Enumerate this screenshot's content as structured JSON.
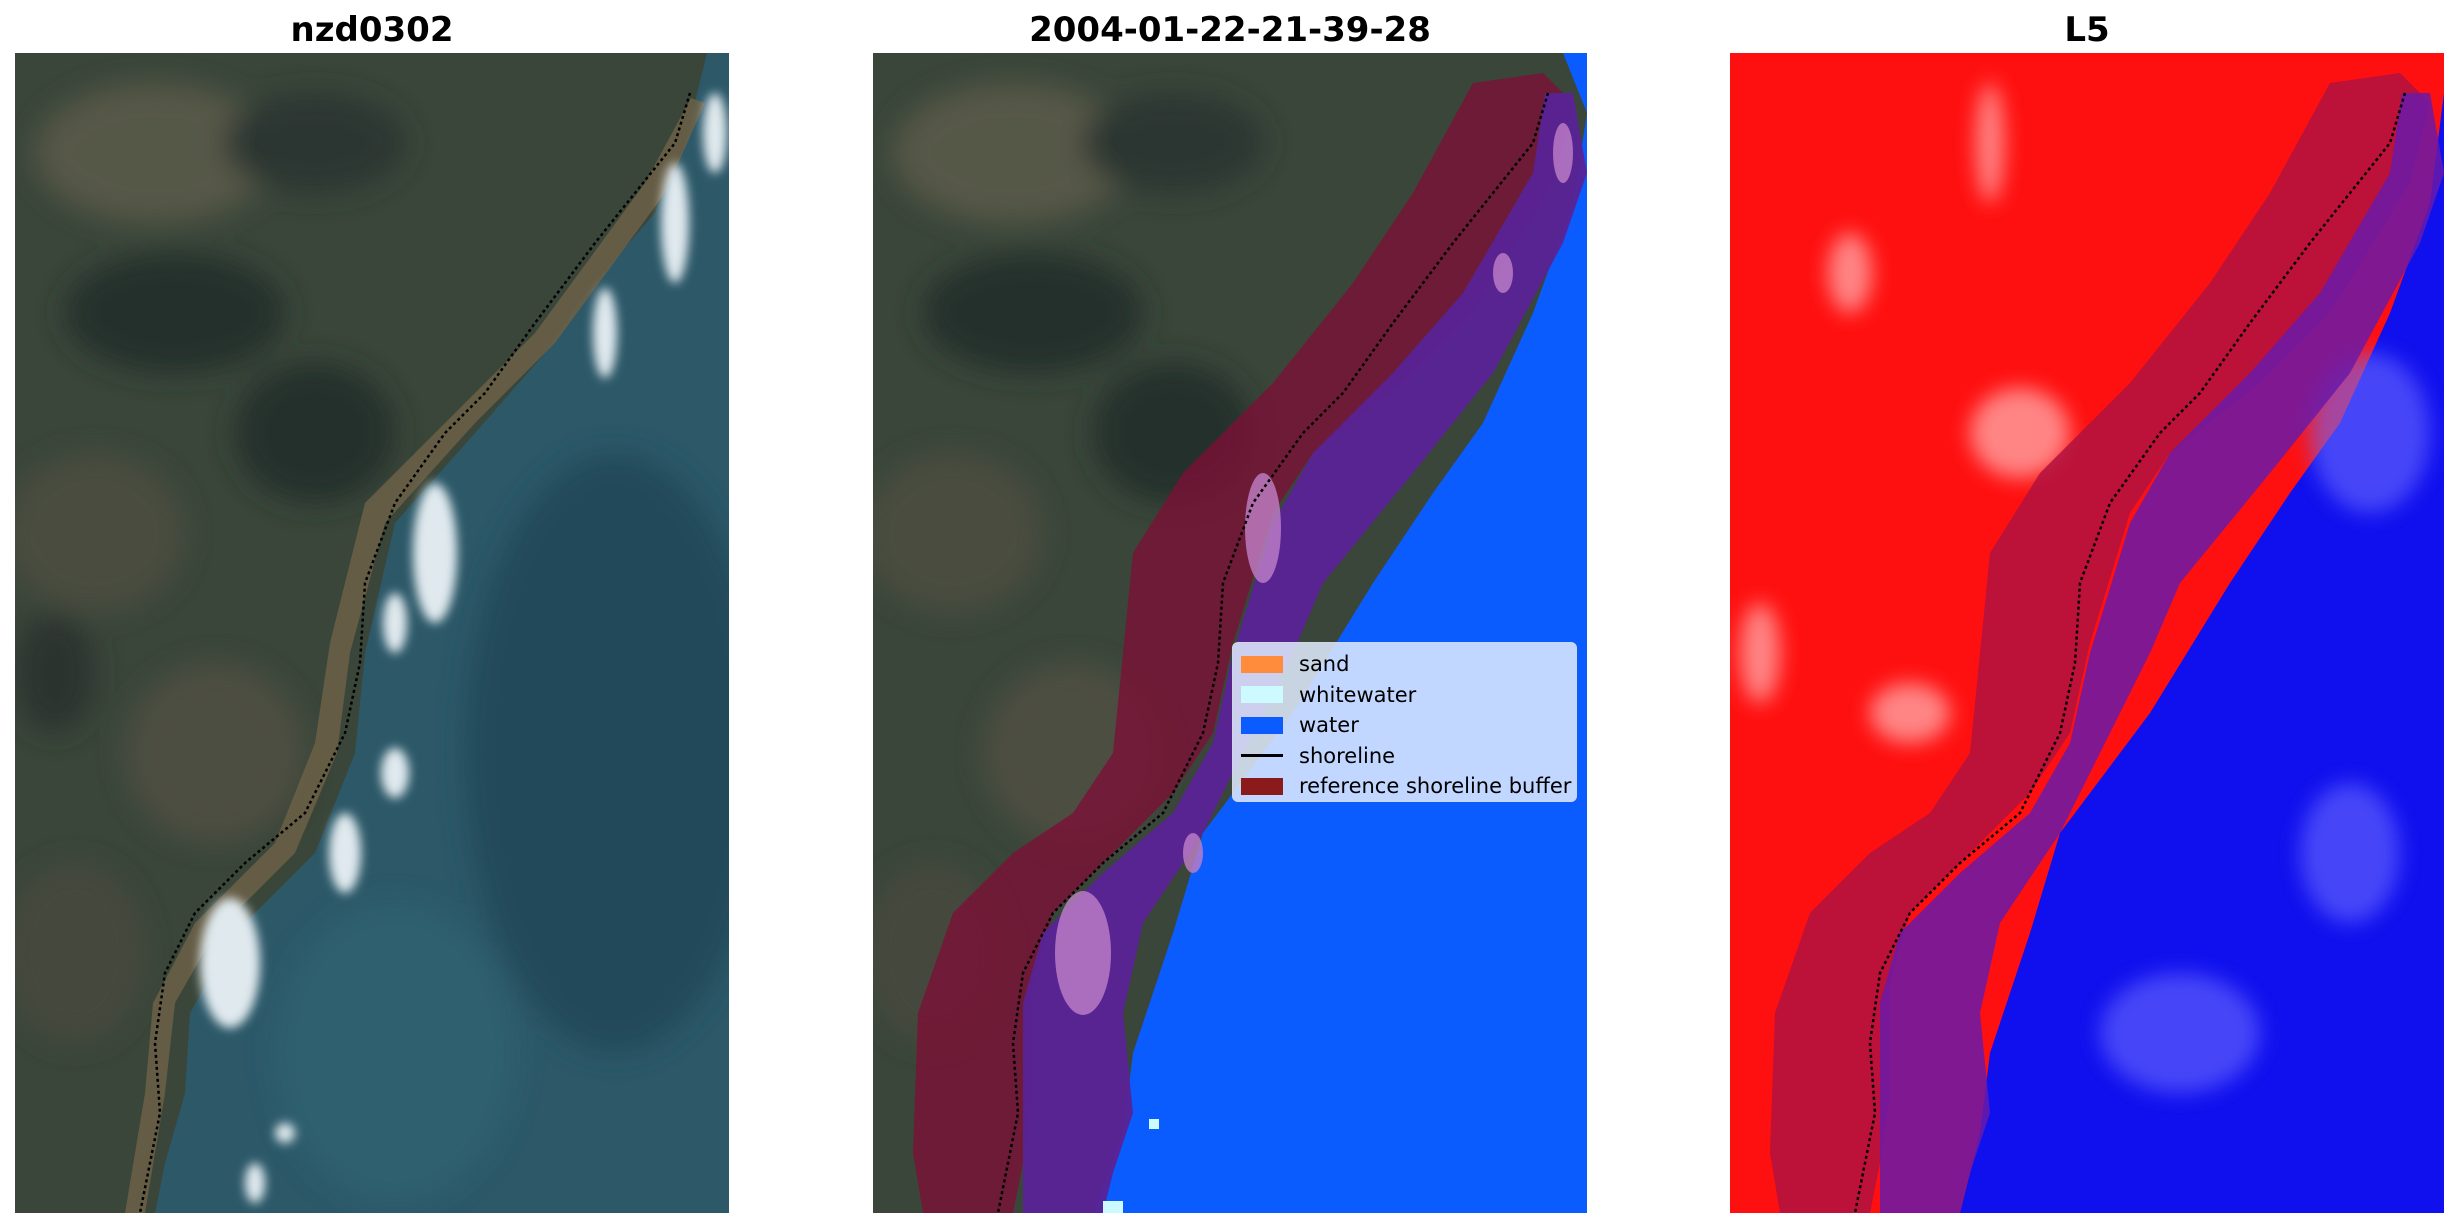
{
  "panels": [
    {
      "title": "nzd0302"
    },
    {
      "title": "2004-01-22-21-39-28"
    },
    {
      "title": "L5"
    }
  ],
  "legend": {
    "items": [
      {
        "label": "sand",
        "color": "#ff8c3c"
      },
      {
        "label": "whitewater",
        "color": "#cdfaff"
      },
      {
        "label": "water",
        "color": "#0a5cff"
      },
      {
        "label": "shoreline",
        "color": "#000000"
      },
      {
        "label": "reference shoreline buffer",
        "color": "#8b1a1a"
      }
    ]
  },
  "colors": {
    "land_rgb": "#3a4a3e",
    "sea_rgb": "#2a5a6e",
    "beach": "#6b6048",
    "surf": "#d8e4ea",
    "class_water": "#0a5cff",
    "buffer": "#7a1036",
    "buffer_over_water": "#5a1f9e",
    "label_land": "#ff1010",
    "label_water": "#1010ee"
  }
}
